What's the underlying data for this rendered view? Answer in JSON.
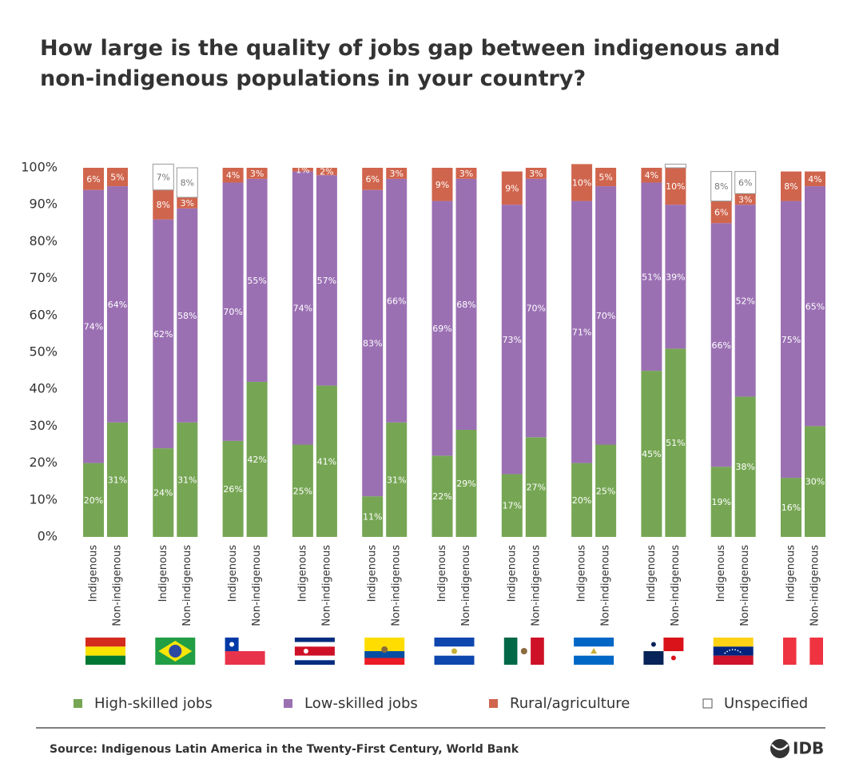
{
  "chart_data": {
    "type": "stacked_bar",
    "title": "How large is the quality of jobs gap between indigenous and non-indigenous populations in your country?",
    "categories": [
      "Indigenous",
      "Non-indigenous",
      "Indigenous",
      "Non-indigenous",
      "Indigenous",
      "Non-indigenous",
      "Indigenous",
      "Non-indigenous",
      "Indigenous",
      "Non-indigenous",
      "Indigenous",
      "Non-indigenous",
      "Indigenous",
      "Non-indigenous",
      "Indigenous",
      "Non-indigenous",
      "Indigenous",
      "Non-indigenous",
      "Indigenous",
      "Non-indigenous",
      "Indigenous",
      "Non-indigenous"
    ],
    "series": [
      {
        "name": "High-skilled jobs",
        "color": "#76a654",
        "values": [
          20,
          31,
          24,
          31,
          26,
          42,
          25,
          41,
          11,
          31,
          22,
          29,
          17,
          27,
          20,
          25,
          45,
          51,
          19,
          38,
          16,
          30
        ],
        "value_labels": [
          "20%",
          "31%",
          "24%",
          "31%",
          "26%",
          "42%",
          "25%",
          "41%",
          "11%",
          "31%",
          "22%",
          "29%",
          "17%",
          "27%",
          "20%",
          "25%",
          "45%",
          "51%",
          "19%",
          "38%",
          "16%",
          "30%"
        ]
      },
      {
        "name": "Low-skilled jobs",
        "color": "#9b70b3",
        "values": [
          74,
          64,
          62,
          58,
          70,
          55,
          74,
          57,
          83,
          66,
          69,
          68,
          73,
          70,
          71,
          70,
          51,
          39,
          66,
          52,
          75,
          65
        ],
        "value_labels": [
          "74%",
          "64%",
          "62%",
          "58%",
          "70%",
          "55%",
          "74%",
          "57%",
          "83%",
          "66%",
          "69%",
          "68%",
          "73%",
          "70%",
          "71%",
          "70%",
          "51%",
          "39%",
          "66%",
          "52%",
          "75%",
          "65%"
        ]
      },
      {
        "name": "Rural/agriculture",
        "color": "#d0654d",
        "values": [
          6,
          5,
          8,
          3,
          4,
          3,
          1,
          2,
          6,
          3,
          9,
          3,
          9,
          3,
          10,
          5,
          4,
          10,
          6,
          3,
          8,
          4
        ],
        "value_labels": [
          "6%",
          "5%",
          "8%",
          "3%",
          "4%",
          "3%",
          "1%",
          "2%",
          "6%",
          "3%",
          "9%",
          "3%",
          "9%",
          "3%",
          "10%",
          "5%",
          "4%",
          "10%",
          "6%",
          "3%",
          "8%",
          "4%"
        ]
      },
      {
        "name": "Unspecified",
        "color": "#ffffff",
        "values": [
          null,
          null,
          7,
          8,
          null,
          null,
          null,
          null,
          null,
          null,
          null,
          null,
          null,
          null,
          null,
          null,
          null,
          1,
          8,
          6,
          null,
          null
        ],
        "value_labels": [
          null,
          null,
          "7%",
          "8%",
          null,
          null,
          null,
          null,
          null,
          null,
          null,
          null,
          null,
          null,
          null,
          null,
          null,
          null,
          "8%",
          "6%",
          null,
          null
        ]
      }
    ],
    "ylim": [
      0,
      100
    ],
    "yticks": [
      {
        "value": 0,
        "label": "0%"
      },
      {
        "value": 10,
        "label": "10%"
      },
      {
        "value": 20,
        "label": "20%"
      },
      {
        "value": 30,
        "label": "30%"
      },
      {
        "value": 40,
        "label": "40%"
      },
      {
        "value": 50,
        "label": "50%"
      },
      {
        "value": 60,
        "label": "60%"
      },
      {
        "value": 70,
        "label": "70%"
      },
      {
        "value": 80,
        "label": "80%"
      },
      {
        "value": 90,
        "label": "90%"
      },
      {
        "value": 100,
        "label": "100%"
      }
    ],
    "legend": "bottom",
    "source": "Source: Indigenous Latin America in the Twenty-First Century, World Bank",
    "logo": "IDB"
  }
}
